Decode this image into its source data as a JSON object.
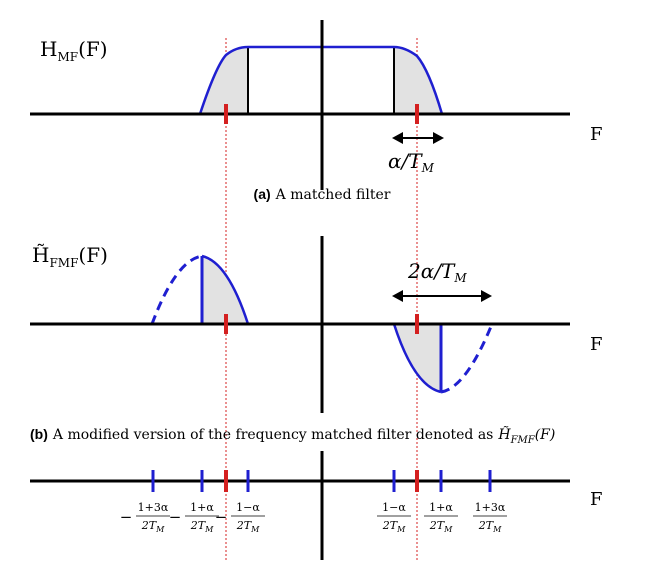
{
  "panel_a": {
    "title_main": "H",
    "title_sub": "MF",
    "title_arg": "(F)",
    "axis_label": "F",
    "width_label": "α/T",
    "width_label_sub": "M",
    "caption_tag": "(a)",
    "caption_text": "A matched filter"
  },
  "panel_b": {
    "title_main": "H̃",
    "title_sub": "FMF",
    "title_arg": "(F)",
    "axis_label": "F",
    "width_label": "2α/T",
    "width_label_sub": "M",
    "caption_tag": "(b)",
    "caption_text": "A modified version of the frequency matched filter denoted as",
    "caption_symbol": "H̃",
    "caption_symbol_sub": "FMF",
    "caption_symbol_arg": "(F)"
  },
  "panel_c": {
    "axis_label": "F",
    "tick_labels": [
      {
        "sign": "−",
        "num": "1+3α",
        "den": "2T",
        "den_sub": "M"
      },
      {
        "sign": "−",
        "num": "1+α",
        "den": "2T",
        "den_sub": "M"
      },
      {
        "sign": "−",
        "num": "1−α",
        "den": "2T",
        "den_sub": "M"
      },
      {
        "sign": "",
        "num": "1−α",
        "den": "2T",
        "den_sub": "M"
      },
      {
        "sign": "",
        "num": "1+α",
        "den": "2T",
        "den_sub": "M"
      },
      {
        "sign": "",
        "num": "1+3α",
        "den": "2T",
        "den_sub": "M"
      }
    ]
  },
  "colors": {
    "axis": "#000000",
    "curve": "#1f1fd0",
    "marker": "#d42020",
    "fill": "#e2e2e2"
  }
}
